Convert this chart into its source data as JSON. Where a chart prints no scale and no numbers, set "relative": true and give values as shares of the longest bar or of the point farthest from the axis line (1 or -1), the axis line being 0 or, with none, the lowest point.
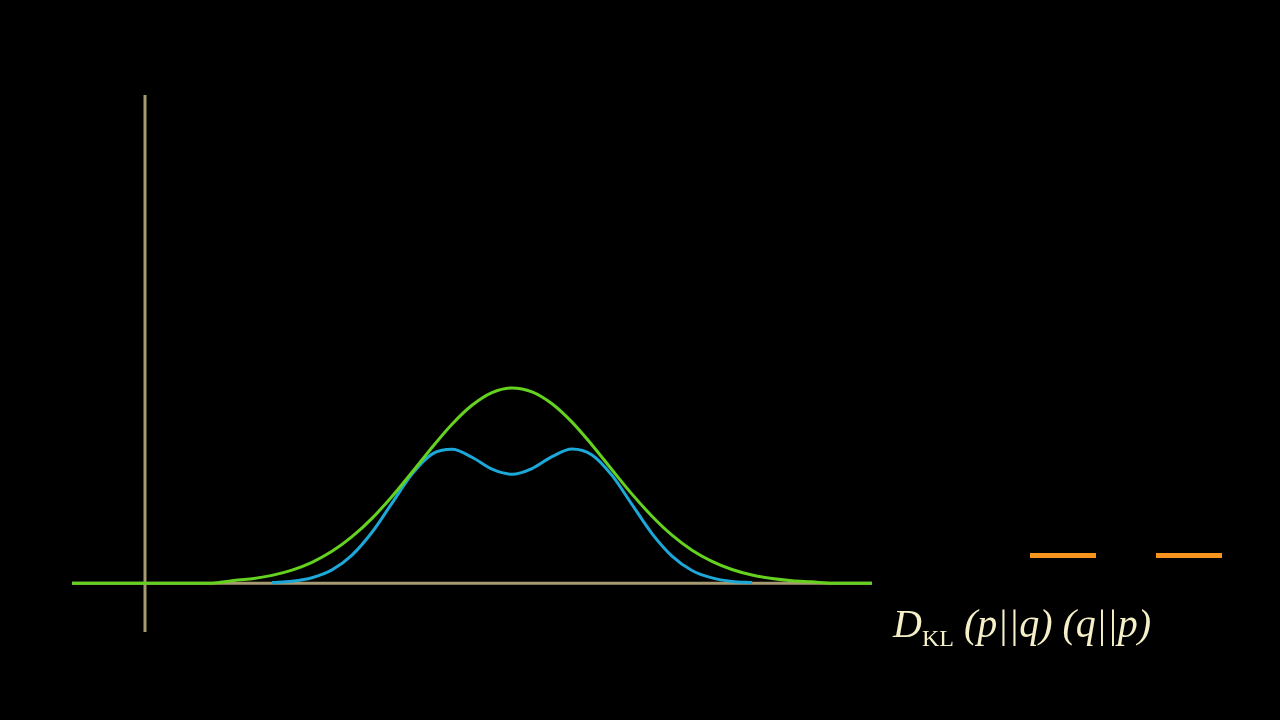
{
  "chart_data": {
    "type": "line",
    "relative": true,
    "legend": false,
    "marker": "none",
    "line_style": "solid",
    "categories": [
      null,
      null,
      null,
      null,
      null,
      null,
      null,
      null,
      null,
      null,
      null,
      null,
      null,
      null,
      null,
      null,
      null,
      null,
      null,
      null,
      null,
      null,
      null,
      null,
      null,
      null,
      null,
      null,
      null,
      null,
      null,
      null,
      null,
      null,
      null,
      null,
      null,
      null,
      null,
      null,
      null
    ],
    "series": [
      {
        "color": "#1ca8d8",
        "values": [
          null,
          null,
          null,
          null,
          null,
          null,
          null,
          null,
          null,
          null,
          0.003,
          0.01,
          0.028,
          0.068,
          0.144,
          0.261,
          0.41,
          0.559,
          0.661,
          0.686,
          0.645,
          0.584,
          0.558,
          0.587,
          0.648,
          0.687,
          0.657,
          0.552,
          0.403,
          0.254,
          0.139,
          0.065,
          0.027,
          0.009,
          0.003,
          null,
          null,
          null,
          null,
          null,
          null
        ]
      },
      {
        "color": "#64d21e",
        "values": [
          0,
          0,
          0,
          0,
          0,
          0,
          0,
          0,
          0.013,
          0.023,
          0.04,
          0.067,
          0.107,
          0.163,
          0.238,
          0.332,
          0.444,
          0.568,
          0.695,
          0.814,
          0.911,
          0.976,
          1,
          0.98,
          0.919,
          0.825,
          0.708,
          0.581,
          0.456,
          0.343,
          0.246,
          0.169,
          0.112,
          0.07,
          0.042,
          0.024,
          0.013,
          0.007,
          0,
          0,
          0
        ]
      }
    ],
    "annotations": [
      "D$_{KL}$ (p||q) (q||p)"
    ]
  }
}
